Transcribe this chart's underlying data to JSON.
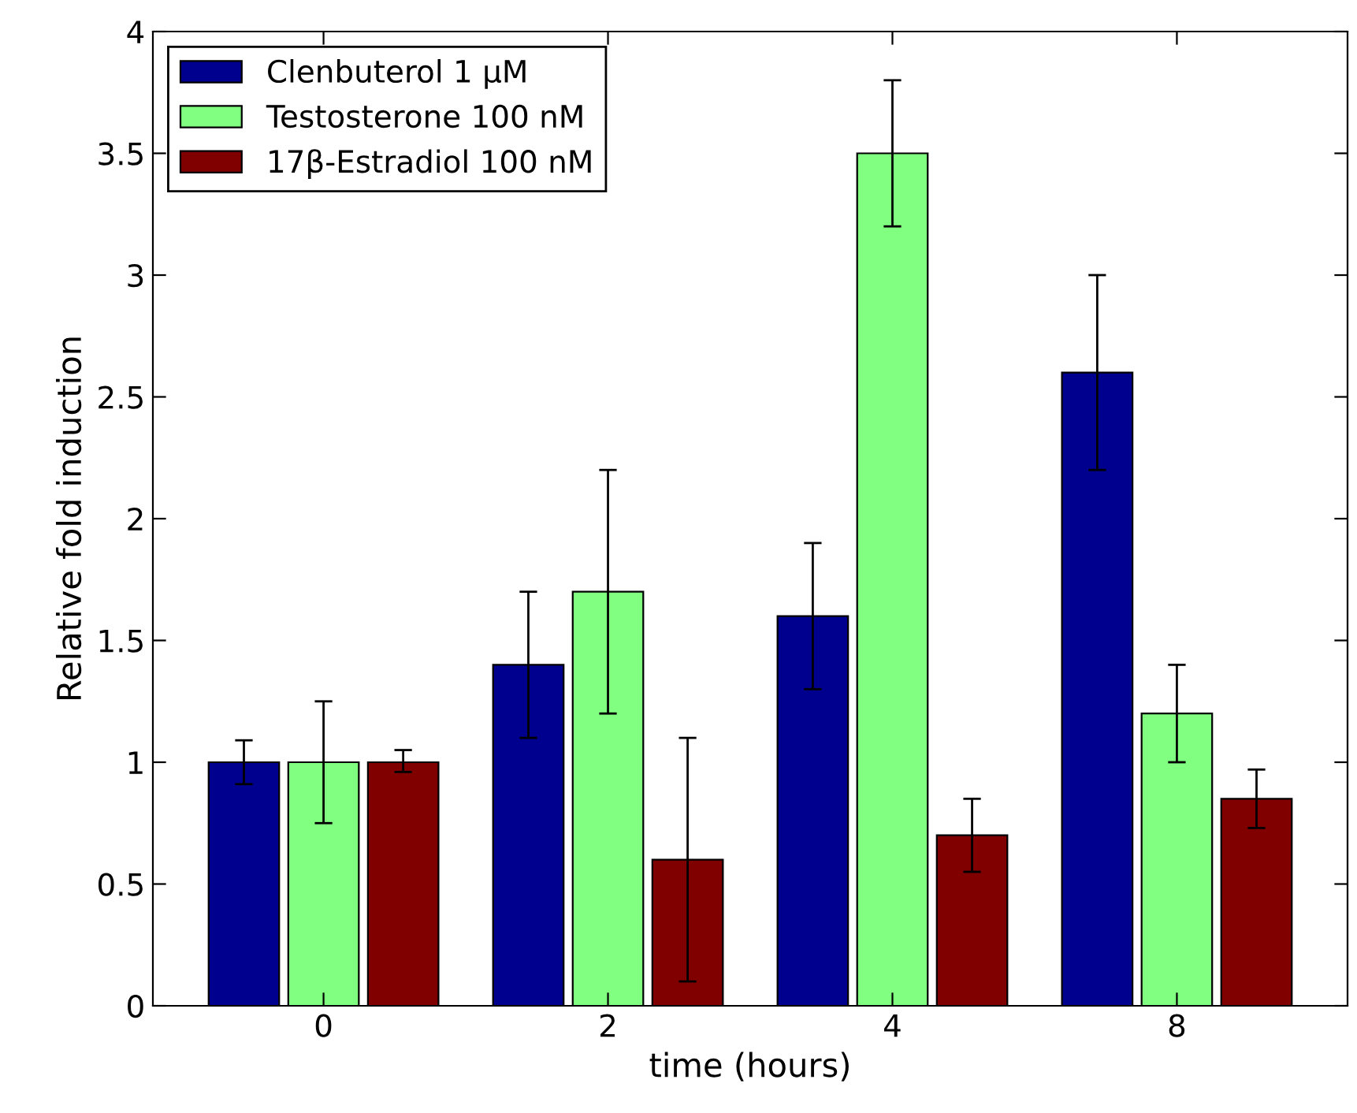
{
  "chart_data": {
    "type": "bar",
    "xlabel": "time (hours)",
    "ylabel": "Relative fold induction",
    "categories": [
      "0",
      "2",
      "4",
      "8"
    ],
    "series": [
      {
        "name": "Clenbuterol 1 μM",
        "color": "#00008f",
        "values": [
          1.0,
          1.4,
          1.6,
          2.6
        ],
        "errors": [
          [
            0.91,
            1.09
          ],
          [
            1.1,
            1.7
          ],
          [
            1.3,
            1.9
          ],
          [
            2.2,
            3.0
          ]
        ]
      },
      {
        "name": "Testosterone 100 nM",
        "color": "#80ff80",
        "values": [
          1.0,
          1.7,
          3.5,
          1.2
        ],
        "errors": [
          [
            0.75,
            1.25
          ],
          [
            1.2,
            2.2
          ],
          [
            3.2,
            3.8
          ],
          [
            1.0,
            1.4
          ]
        ]
      },
      {
        "name": "17β-Estradiol 100 nM",
        "color": "#800000",
        "values": [
          1.0,
          0.6,
          0.7,
          0.85
        ],
        "errors": [
          [
            0.96,
            1.05
          ],
          [
            0.1,
            1.1
          ],
          [
            0.55,
            0.85
          ],
          [
            0.73,
            0.97
          ]
        ]
      }
    ],
    "ylim": [
      0,
      4
    ],
    "yticks": [
      0,
      0.5,
      1,
      1.5,
      2,
      2.5,
      3,
      3.5,
      4
    ],
    "grid": false,
    "legend": "top left"
  }
}
